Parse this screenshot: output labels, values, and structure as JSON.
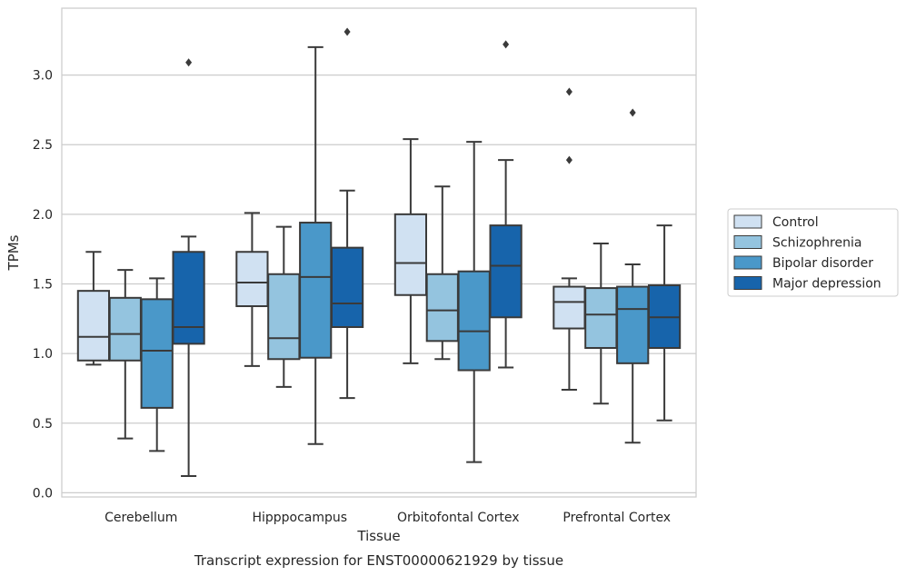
{
  "chart_data": {
    "type": "box",
    "title": "Transcript expression for ENST00000621929 by tissue",
    "xlabel": "Tissue",
    "ylabel": "TPMs",
    "ylim": [
      -0.03,
      3.48
    ],
    "yticks": [
      "0.0",
      "0.5",
      "1.0",
      "1.5",
      "2.0",
      "2.5",
      "3.0"
    ],
    "grid": "horizontal",
    "legend_position": "right",
    "categories": [
      "Cerebellum",
      "Hipppocampus",
      "Orbitofontal Cortex",
      "Prefrontal Cortex"
    ],
    "series": [
      {
        "name": "Control",
        "color": "#d0e1f2",
        "boxes": [
          {
            "whislo": 0.92,
            "q1": 0.95,
            "med": 1.12,
            "q3": 1.45,
            "whishi": 1.73,
            "fliers": []
          },
          {
            "whislo": 0.91,
            "q1": 1.34,
            "med": 1.51,
            "q3": 1.73,
            "whishi": 2.01,
            "fliers": []
          },
          {
            "whislo": 0.93,
            "q1": 1.42,
            "med": 1.65,
            "q3": 2.0,
            "whishi": 2.54,
            "fliers": []
          },
          {
            "whislo": 0.74,
            "q1": 1.18,
            "med": 1.37,
            "q3": 1.48,
            "whishi": 1.54,
            "fliers": [
              2.39,
              2.88
            ]
          }
        ]
      },
      {
        "name": "Schizophrenia",
        "color": "#94c4df",
        "boxes": [
          {
            "whislo": 0.39,
            "q1": 0.95,
            "med": 1.14,
            "q3": 1.4,
            "whishi": 1.6,
            "fliers": []
          },
          {
            "whislo": 0.76,
            "q1": 0.96,
            "med": 1.11,
            "q3": 1.57,
            "whishi": 1.91,
            "fliers": []
          },
          {
            "whislo": 0.96,
            "q1": 1.09,
            "med": 1.31,
            "q3": 1.57,
            "whishi": 2.2,
            "fliers": []
          },
          {
            "whislo": 0.64,
            "q1": 1.04,
            "med": 1.28,
            "q3": 1.47,
            "whishi": 1.79,
            "fliers": []
          }
        ]
      },
      {
        "name": "Bipolar disorder",
        "color": "#4a98c9",
        "boxes": [
          {
            "whislo": 0.3,
            "q1": 0.61,
            "med": 1.02,
            "q3": 1.39,
            "whishi": 1.54,
            "fliers": []
          },
          {
            "whislo": 0.35,
            "q1": 0.97,
            "med": 1.55,
            "q3": 1.94,
            "whishi": 3.2,
            "fliers": []
          },
          {
            "whislo": 0.22,
            "q1": 0.88,
            "med": 1.16,
            "q3": 1.59,
            "whishi": 2.52,
            "fliers": []
          },
          {
            "whislo": 0.36,
            "q1": 0.93,
            "med": 1.32,
            "q3": 1.48,
            "whishi": 1.64,
            "fliers": [
              2.73
            ]
          }
        ]
      },
      {
        "name": "Major depression",
        "color": "#1764ab",
        "boxes": [
          {
            "whislo": 0.12,
            "q1": 1.07,
            "med": 1.19,
            "q3": 1.73,
            "whishi": 1.84,
            "fliers": [
              3.09
            ]
          },
          {
            "whislo": 0.68,
            "q1": 1.19,
            "med": 1.36,
            "q3": 1.76,
            "whishi": 2.17,
            "fliers": [
              3.31
            ]
          },
          {
            "whislo": 0.9,
            "q1": 1.26,
            "med": 1.63,
            "q3": 1.92,
            "whishi": 2.39,
            "fliers": [
              3.22
            ]
          },
          {
            "whislo": 0.52,
            "q1": 1.04,
            "med": 1.26,
            "q3": 1.49,
            "whishi": 1.92,
            "fliers": []
          }
        ]
      }
    ]
  }
}
